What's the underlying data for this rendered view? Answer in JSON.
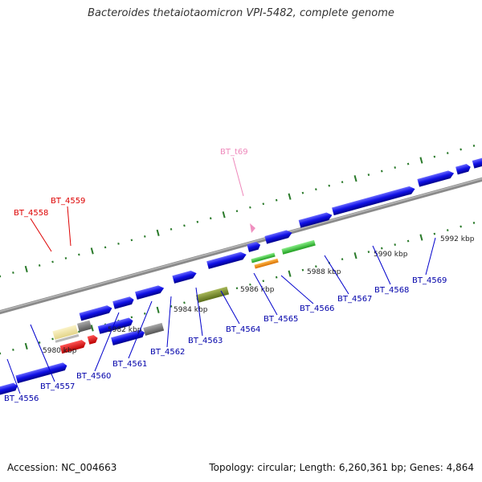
{
  "title": "Bacteroides thetaiotaomicron VPI-5482, complete genome",
  "footer": {
    "accession": "Accession: NC_004663",
    "topology": "Topology: circular; Length: 6,260,361 bp; Genes: 4,864"
  },
  "colors": {
    "backbone": "#8a8a8a",
    "cds": "#1010e6",
    "pseudo": "#707070",
    "label_cds": "#0000aa",
    "label_red": "#dd0000",
    "label_trna": "#ee88bb",
    "tick": "#2a7a2a"
  },
  "kbp_marks": [
    {
      "label": "5980 kbp"
    },
    {
      "label": "5982 kbp"
    },
    {
      "label": "5984 kbp"
    },
    {
      "label": "5986 kbp"
    },
    {
      "label": "5988 kbp"
    },
    {
      "label": "5990 kbp"
    },
    {
      "label": "5992 kbp"
    }
  ],
  "gene_labels": [
    {
      "label": "BT_4556"
    },
    {
      "label": "BT_4557"
    },
    {
      "label": "BT_4558"
    },
    {
      "label": "BT_4559"
    },
    {
      "label": "BT_4560"
    },
    {
      "label": "BT_4561"
    },
    {
      "label": "BT_4562"
    },
    {
      "label": "BT_4563"
    },
    {
      "label": "BT_4564"
    },
    {
      "label": "BT_4565"
    },
    {
      "label": "BT_4566"
    },
    {
      "label": "BT_4567"
    },
    {
      "label": "BT_4568"
    },
    {
      "label": "BT_4569"
    },
    {
      "label": "BT_t69"
    }
  ]
}
